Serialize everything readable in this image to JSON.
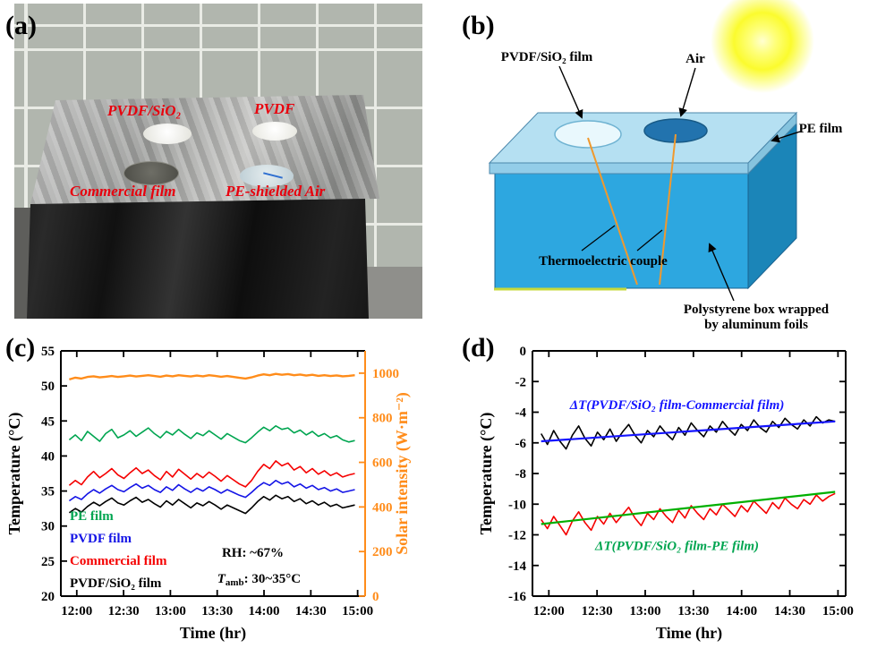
{
  "panels": {
    "a": {
      "letter": "(a)",
      "labels": {
        "pvdf_sio2": "PVDF/SiO₂",
        "pvdf": "PVDF",
        "commercial": "Commercial film",
        "pe_air": "PE-shielded Air"
      },
      "label_color": "#e8000d"
    },
    "b": {
      "letter": "(b)",
      "labels": {
        "pvdf_film": "PVDF/SiO₂ film",
        "air": "Air",
        "pe_film": "PE film",
        "thermocouple": "Thermoelectric couple",
        "box_line1": "Polystyrene box wrapped",
        "box_line2": "by aluminum foils"
      }
    },
    "c": {
      "letter": "(c)"
    },
    "d": {
      "letter": "(d)"
    }
  },
  "chart_data": [
    {
      "id": "chart-c",
      "type": "line",
      "xlabel": "Time (hr)",
      "ylabel_left": "Temperature (°C)",
      "ylabel_right": "Solar intensity (W·m⁻²)",
      "right_axis_color": "#ff8c1a",
      "xlim": [
        11.83,
        15.08
      ],
      "xticks": [
        12,
        12.5,
        13,
        13.5,
        14,
        14.5,
        15
      ],
      "xtick_labels": [
        "12:00",
        "12:30",
        "13:00",
        "13:30",
        "14:00",
        "14:30",
        "15:00"
      ],
      "ylim_left": [
        20,
        55
      ],
      "yticks_left": [
        20,
        25,
        30,
        35,
        40,
        45,
        50,
        55
      ],
      "ylim_right": [
        0,
        1100
      ],
      "yticks_right": [
        0,
        200,
        400,
        600,
        800,
        1000
      ],
      "legend": [
        {
          "label": "PE film",
          "color": "#00a550"
        },
        {
          "label": "PVDF film",
          "color": "#1414e6"
        },
        {
          "label": "Commercial film",
          "color": "#f50000"
        },
        {
          "label": "PVDF/SiO₂ film",
          "color": "#000000"
        }
      ],
      "annotations": [
        {
          "text": "RH: ~67%",
          "x": 13.55,
          "y": 25.6,
          "color": "#000000",
          "anchor": "start"
        },
        {
          "pre": "T",
          "sub": "amb",
          "post": ": 30~35°C",
          "x": 13.5,
          "y": 21.9,
          "color": "#000000",
          "anchor": "start"
        }
      ],
      "series": [
        {
          "id": "solar",
          "name": "Solar intensity",
          "axis": "right",
          "color": "#ff8c1a",
          "width": 2.4,
          "x_start": 11.92,
          "x_end": 14.97,
          "values": [
            972,
            980,
            976,
            983,
            986,
            981,
            984,
            987,
            983,
            986,
            989,
            985,
            988,
            991,
            987,
            984,
            989,
            986,
            991,
            988,
            985,
            989,
            986,
            991,
            988,
            984,
            987,
            983,
            979,
            976,
            981,
            989,
            995,
            991,
            997,
            993,
            996,
            991,
            994,
            989,
            993,
            988,
            991,
            987,
            990,
            986,
            988,
            991
          ]
        },
        {
          "id": "pe-film",
          "name": "PE film",
          "axis": "left",
          "color": "#00a550",
          "width": 1.6,
          "x_start": 11.92,
          "x_end": 14.97,
          "values": [
            42.3,
            43.0,
            42.2,
            43.5,
            42.8,
            42.1,
            43.2,
            43.8,
            42.6,
            43.0,
            43.6,
            42.8,
            43.4,
            44.0,
            43.2,
            42.6,
            43.5,
            43.0,
            43.8,
            43.1,
            42.5,
            43.3,
            42.9,
            43.6,
            43.0,
            42.4,
            43.2,
            42.7,
            42.2,
            41.9,
            42.6,
            43.4,
            44.1,
            43.6,
            44.3,
            43.8,
            44.0,
            43.3,
            43.7,
            43.0,
            43.5,
            42.8,
            43.2,
            42.6,
            42.9,
            42.3,
            42.0,
            42.2
          ]
        },
        {
          "id": "commercial-film",
          "name": "Commercial film",
          "axis": "left",
          "color": "#f50000",
          "width": 1.6,
          "x_start": 11.92,
          "x_end": 14.97,
          "values": [
            35.8,
            36.5,
            35.9,
            37.0,
            37.8,
            36.9,
            37.5,
            38.2,
            37.3,
            36.8,
            37.6,
            38.3,
            37.5,
            38.0,
            37.2,
            36.6,
            37.8,
            37.0,
            38.1,
            37.4,
            36.7,
            37.5,
            36.9,
            37.7,
            37.1,
            36.4,
            37.2,
            36.6,
            36.0,
            35.6,
            36.5,
            37.8,
            38.8,
            38.2,
            39.3,
            38.6,
            39.0,
            38.0,
            38.5,
            37.6,
            38.2,
            37.4,
            37.9,
            37.2,
            37.6,
            37.0,
            37.3,
            37.5
          ]
        },
        {
          "id": "pvdf-film",
          "name": "PVDF film",
          "axis": "left",
          "color": "#1414e6",
          "width": 1.6,
          "x_start": 11.92,
          "x_end": 14.97,
          "values": [
            33.6,
            34.2,
            33.8,
            34.6,
            35.2,
            34.7,
            35.3,
            35.8,
            35.2,
            34.9,
            35.5,
            36.0,
            35.4,
            35.8,
            35.2,
            34.8,
            35.6,
            35.1,
            35.9,
            35.3,
            34.8,
            35.4,
            35.0,
            35.6,
            35.2,
            34.7,
            35.2,
            34.8,
            34.4,
            34.1,
            34.8,
            35.6,
            36.2,
            35.8,
            36.5,
            36.0,
            36.3,
            35.6,
            36.0,
            35.4,
            35.8,
            35.2,
            35.5,
            35.0,
            35.3,
            34.8,
            35.0,
            35.2
          ]
        },
        {
          "id": "pvdf-sio2-film",
          "name": "PVDF/SiO₂ film",
          "axis": "left",
          "color": "#000000",
          "width": 1.6,
          "x_start": 11.92,
          "x_end": 14.97,
          "values": [
            31.9,
            32.5,
            32.0,
            32.8,
            33.4,
            32.9,
            33.5,
            34.0,
            33.3,
            33.0,
            33.6,
            34.1,
            33.4,
            33.8,
            33.2,
            32.7,
            33.6,
            33.0,
            33.8,
            33.2,
            32.6,
            33.3,
            32.9,
            33.5,
            33.0,
            32.4,
            33.0,
            32.6,
            32.2,
            31.8,
            32.6,
            33.5,
            34.2,
            33.7,
            34.4,
            33.9,
            34.2,
            33.5,
            33.9,
            33.2,
            33.6,
            33.0,
            33.4,
            32.8,
            33.1,
            32.6,
            32.8,
            33.0
          ]
        }
      ]
    },
    {
      "id": "chart-d",
      "type": "line",
      "xlabel": "Time (hr)",
      "ylabel_left": "Temperature (°C)",
      "xlim": [
        11.83,
        15.08
      ],
      "xticks": [
        12,
        12.5,
        13,
        13.5,
        14,
        14.5,
        15
      ],
      "xtick_labels": [
        "12:00",
        "12:30",
        "13:00",
        "13:30",
        "14:00",
        "14:30",
        "15:00"
      ],
      "ylim_left": [
        -16,
        0
      ],
      "yticks_left": [
        0,
        -2,
        -4,
        -6,
        -8,
        -10,
        -12,
        -14,
        -16
      ],
      "annotations": [
        {
          "text": "ΔT(PVDF/SiO₂ film-Commercial film)",
          "x": 13.33,
          "y": -3.8,
          "color": "#1414ff",
          "italic": true,
          "anchor": "middle"
        },
        {
          "text": "ΔT(PVDF/SiO₂ film-PE film)",
          "x": 13.33,
          "y": -13.0,
          "color": "#00a550",
          "italic": true,
          "anchor": "middle"
        }
      ],
      "series": [
        {
          "id": "dt-commercial-measured",
          "name": "ΔT PVDF/SiO₂ film - Commercial film (measured)",
          "axis": "left",
          "color": "#000000",
          "width": 1.6,
          "x_start": 11.92,
          "x_end": 14.97,
          "values": [
            -5.4,
            -6.1,
            -5.2,
            -5.9,
            -6.4,
            -5.5,
            -4.9,
            -5.7,
            -6.2,
            -5.3,
            -5.8,
            -5.1,
            -5.9,
            -5.3,
            -4.8,
            -5.5,
            -6.0,
            -5.2,
            -5.6,
            -4.9,
            -5.4,
            -5.8,
            -5.0,
            -5.5,
            -4.7,
            -5.2,
            -5.6,
            -4.9,
            -5.3,
            -4.6,
            -5.1,
            -5.5,
            -4.8,
            -5.2,
            -4.5,
            -5.0,
            -5.3,
            -4.6,
            -5.0,
            -4.4,
            -4.8,
            -5.1,
            -4.5,
            -4.9,
            -4.3,
            -4.7,
            -4.5,
            -4.6
          ]
        },
        {
          "id": "dt-commercial-trend",
          "name": "ΔT Commercial film trend",
          "axis": "left",
          "color": "#1414ff",
          "width": 2.2,
          "x_start": 11.92,
          "x_end": 14.97,
          "values": [
            -5.9,
            -4.6
          ]
        },
        {
          "id": "dt-pe-measured",
          "name": "ΔT PVDF/SiO₂ film - PE film (measured)",
          "axis": "left",
          "color": "#f50000",
          "width": 1.6,
          "x_start": 11.92,
          "x_end": 14.97,
          "values": [
            -11.0,
            -11.6,
            -10.8,
            -11.4,
            -12.0,
            -11.1,
            -10.5,
            -11.2,
            -11.7,
            -10.8,
            -11.3,
            -10.6,
            -11.2,
            -10.7,
            -10.2,
            -10.9,
            -11.4,
            -10.6,
            -11.0,
            -10.3,
            -10.8,
            -11.2,
            -10.4,
            -10.9,
            -10.1,
            -10.6,
            -11.0,
            -10.3,
            -10.7,
            -10.0,
            -10.4,
            -10.8,
            -10.1,
            -10.5,
            -9.8,
            -10.2,
            -10.6,
            -9.9,
            -10.3,
            -9.6,
            -10.0,
            -10.3,
            -9.7,
            -10.0,
            -9.4,
            -9.8,
            -9.5,
            -9.3
          ]
        },
        {
          "id": "dt-pe-trend",
          "name": "ΔT PE film trend",
          "axis": "left",
          "color": "#00b000",
          "width": 2.2,
          "x_start": 11.92,
          "x_end": 14.97,
          "values": [
            -11.3,
            -9.2
          ]
        }
      ]
    }
  ]
}
